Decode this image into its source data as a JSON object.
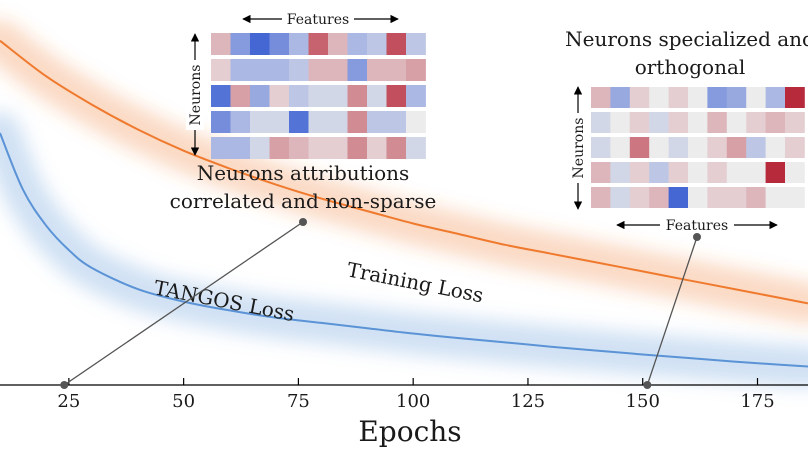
{
  "chart_data": {
    "type": "line",
    "xlabel": "Epochs",
    "x_ticks": [
      25,
      50,
      75,
      100,
      125,
      150,
      175
    ],
    "xlim": [
      10,
      186
    ],
    "ylim": [
      0,
      1
    ],
    "grid": false,
    "series": [
      {
        "name": "Training Loss",
        "color": "#ef7a2e",
        "x": [
          10,
          20,
          30,
          40,
          50,
          60,
          70,
          80,
          90,
          100,
          110,
          120,
          130,
          140,
          150,
          160,
          170,
          180,
          186
        ],
        "values": [
          0.97,
          0.87,
          0.79,
          0.72,
          0.66,
          0.61,
          0.565,
          0.525,
          0.49,
          0.455,
          0.425,
          0.395,
          0.37,
          0.345,
          0.32,
          0.295,
          0.27,
          0.245,
          0.23
        ]
      },
      {
        "name": "TANGOS Loss",
        "color": "#5b93d6",
        "x": [
          10,
          15,
          20,
          25,
          30,
          40,
          50,
          60,
          70,
          80,
          90,
          100,
          110,
          120,
          130,
          140,
          150,
          160,
          170,
          180,
          186
        ],
        "values": [
          0.71,
          0.55,
          0.45,
          0.38,
          0.33,
          0.27,
          0.235,
          0.21,
          0.19,
          0.175,
          0.16,
          0.145,
          0.132,
          0.12,
          0.108,
          0.097,
          0.086,
          0.076,
          0.066,
          0.057,
          0.052
        ]
      }
    ],
    "annotations": [
      {
        "text": [
          "Neurons attributions",
          "correlated and non-sparse"
        ],
        "x": 24,
        "heatmap": {
          "title": "Features",
          "ylabel": "Neurons",
          "label_position": "top",
          "matrix": [
            [
              0.2,
              -0.5,
              -0.9,
              -0.6,
              -0.3,
              0.6,
              0.2,
              -0.3,
              -0.2,
              0.7,
              -0.2
            ],
            [
              0.1,
              -0.3,
              -0.3,
              -0.3,
              -0.2,
              0.2,
              0.2,
              -0.5,
              0.2,
              0.2,
              0.3
            ],
            [
              -0.8,
              0.3,
              -0.4,
              0.1,
              -0.2,
              -0.1,
              -0.1,
              0.4,
              -0.1,
              0.7,
              -0.3
            ],
            [
              -0.6,
              -0.3,
              -0.1,
              -0.1,
              -0.8,
              -0.1,
              -0.1,
              0.4,
              -0.2,
              -0.2,
              0.0
            ],
            [
              -0.3,
              -0.3,
              -0.1,
              0.3,
              0.2,
              0.1,
              0.1,
              0.4,
              0.1,
              0.4,
              -0.1
            ]
          ]
        }
      },
      {
        "text": [
          "Neurons specialized and",
          "orthogonal"
        ],
        "x": 151,
        "heatmap": {
          "title": "Features",
          "ylabel": "Neurons",
          "label_position": "bottom",
          "matrix": [
            [
              0.2,
              -0.4,
              0.1,
              0.0,
              0.1,
              0.0,
              -0.5,
              -0.4,
              0.0,
              -0.3,
              0.9
            ],
            [
              -0.1,
              0.0,
              0.1,
              -0.1,
              0.1,
              0.0,
              0.2,
              0.0,
              0.1,
              0.2,
              0.1
            ],
            [
              -0.1,
              0.0,
              0.5,
              0.0,
              -0.1,
              0.0,
              0.1,
              0.3,
              -0.2,
              0.0,
              0.1
            ],
            [
              0.2,
              -0.1,
              0.1,
              -0.2,
              0.1,
              0.0,
              0.1,
              0.0,
              0.0,
              0.9,
              0.0
            ],
            [
              0.2,
              -0.1,
              0.1,
              0.2,
              -0.9,
              0.0,
              0.1,
              0.1,
              0.2,
              0.0,
              0.0
            ]
          ]
        }
      }
    ]
  }
}
